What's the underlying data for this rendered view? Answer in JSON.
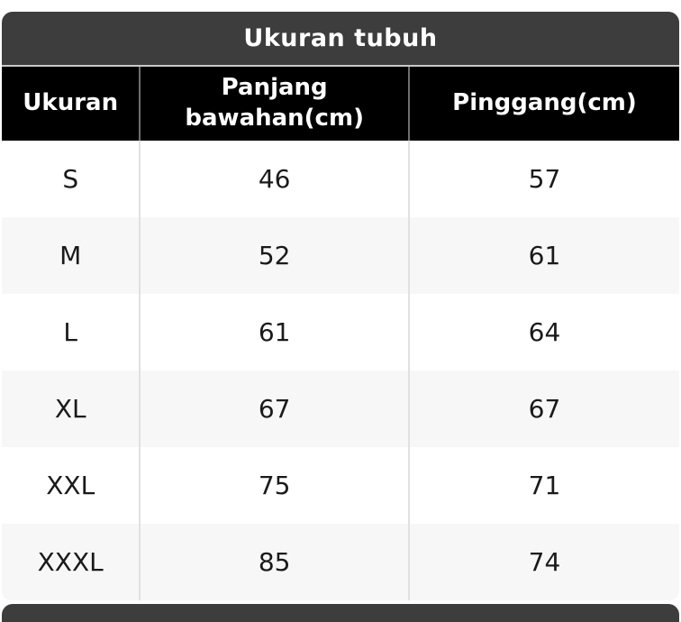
{
  "chart_data": {
    "type": "table",
    "title": "Ukuran tubuh",
    "columns": [
      "Ukuran",
      "Panjang bawahan(cm)",
      "Pinggang(cm)"
    ],
    "rows": [
      [
        "S",
        "46",
        "57"
      ],
      [
        "M",
        "52",
        "61"
      ],
      [
        "L",
        "61",
        "64"
      ],
      [
        "XL",
        "67",
        "67"
      ],
      [
        "XXL",
        "75",
        "71"
      ],
      [
        "XXXL",
        "85",
        "74"
      ]
    ],
    "layout": {
      "legend": "none",
      "grid": "vertical-separators-only",
      "zebra_striping": true
    }
  },
  "colors": {
    "title_bar_bg": "#3d3d3d",
    "title_text": "#ffffff",
    "header_bg": "#000000",
    "header_text": "#ffffff",
    "row_bg": "#ffffff",
    "row_alt_bg": "#f7f7f8",
    "body_text": "#1a1a1a",
    "separator": "#e1e1e1"
  }
}
